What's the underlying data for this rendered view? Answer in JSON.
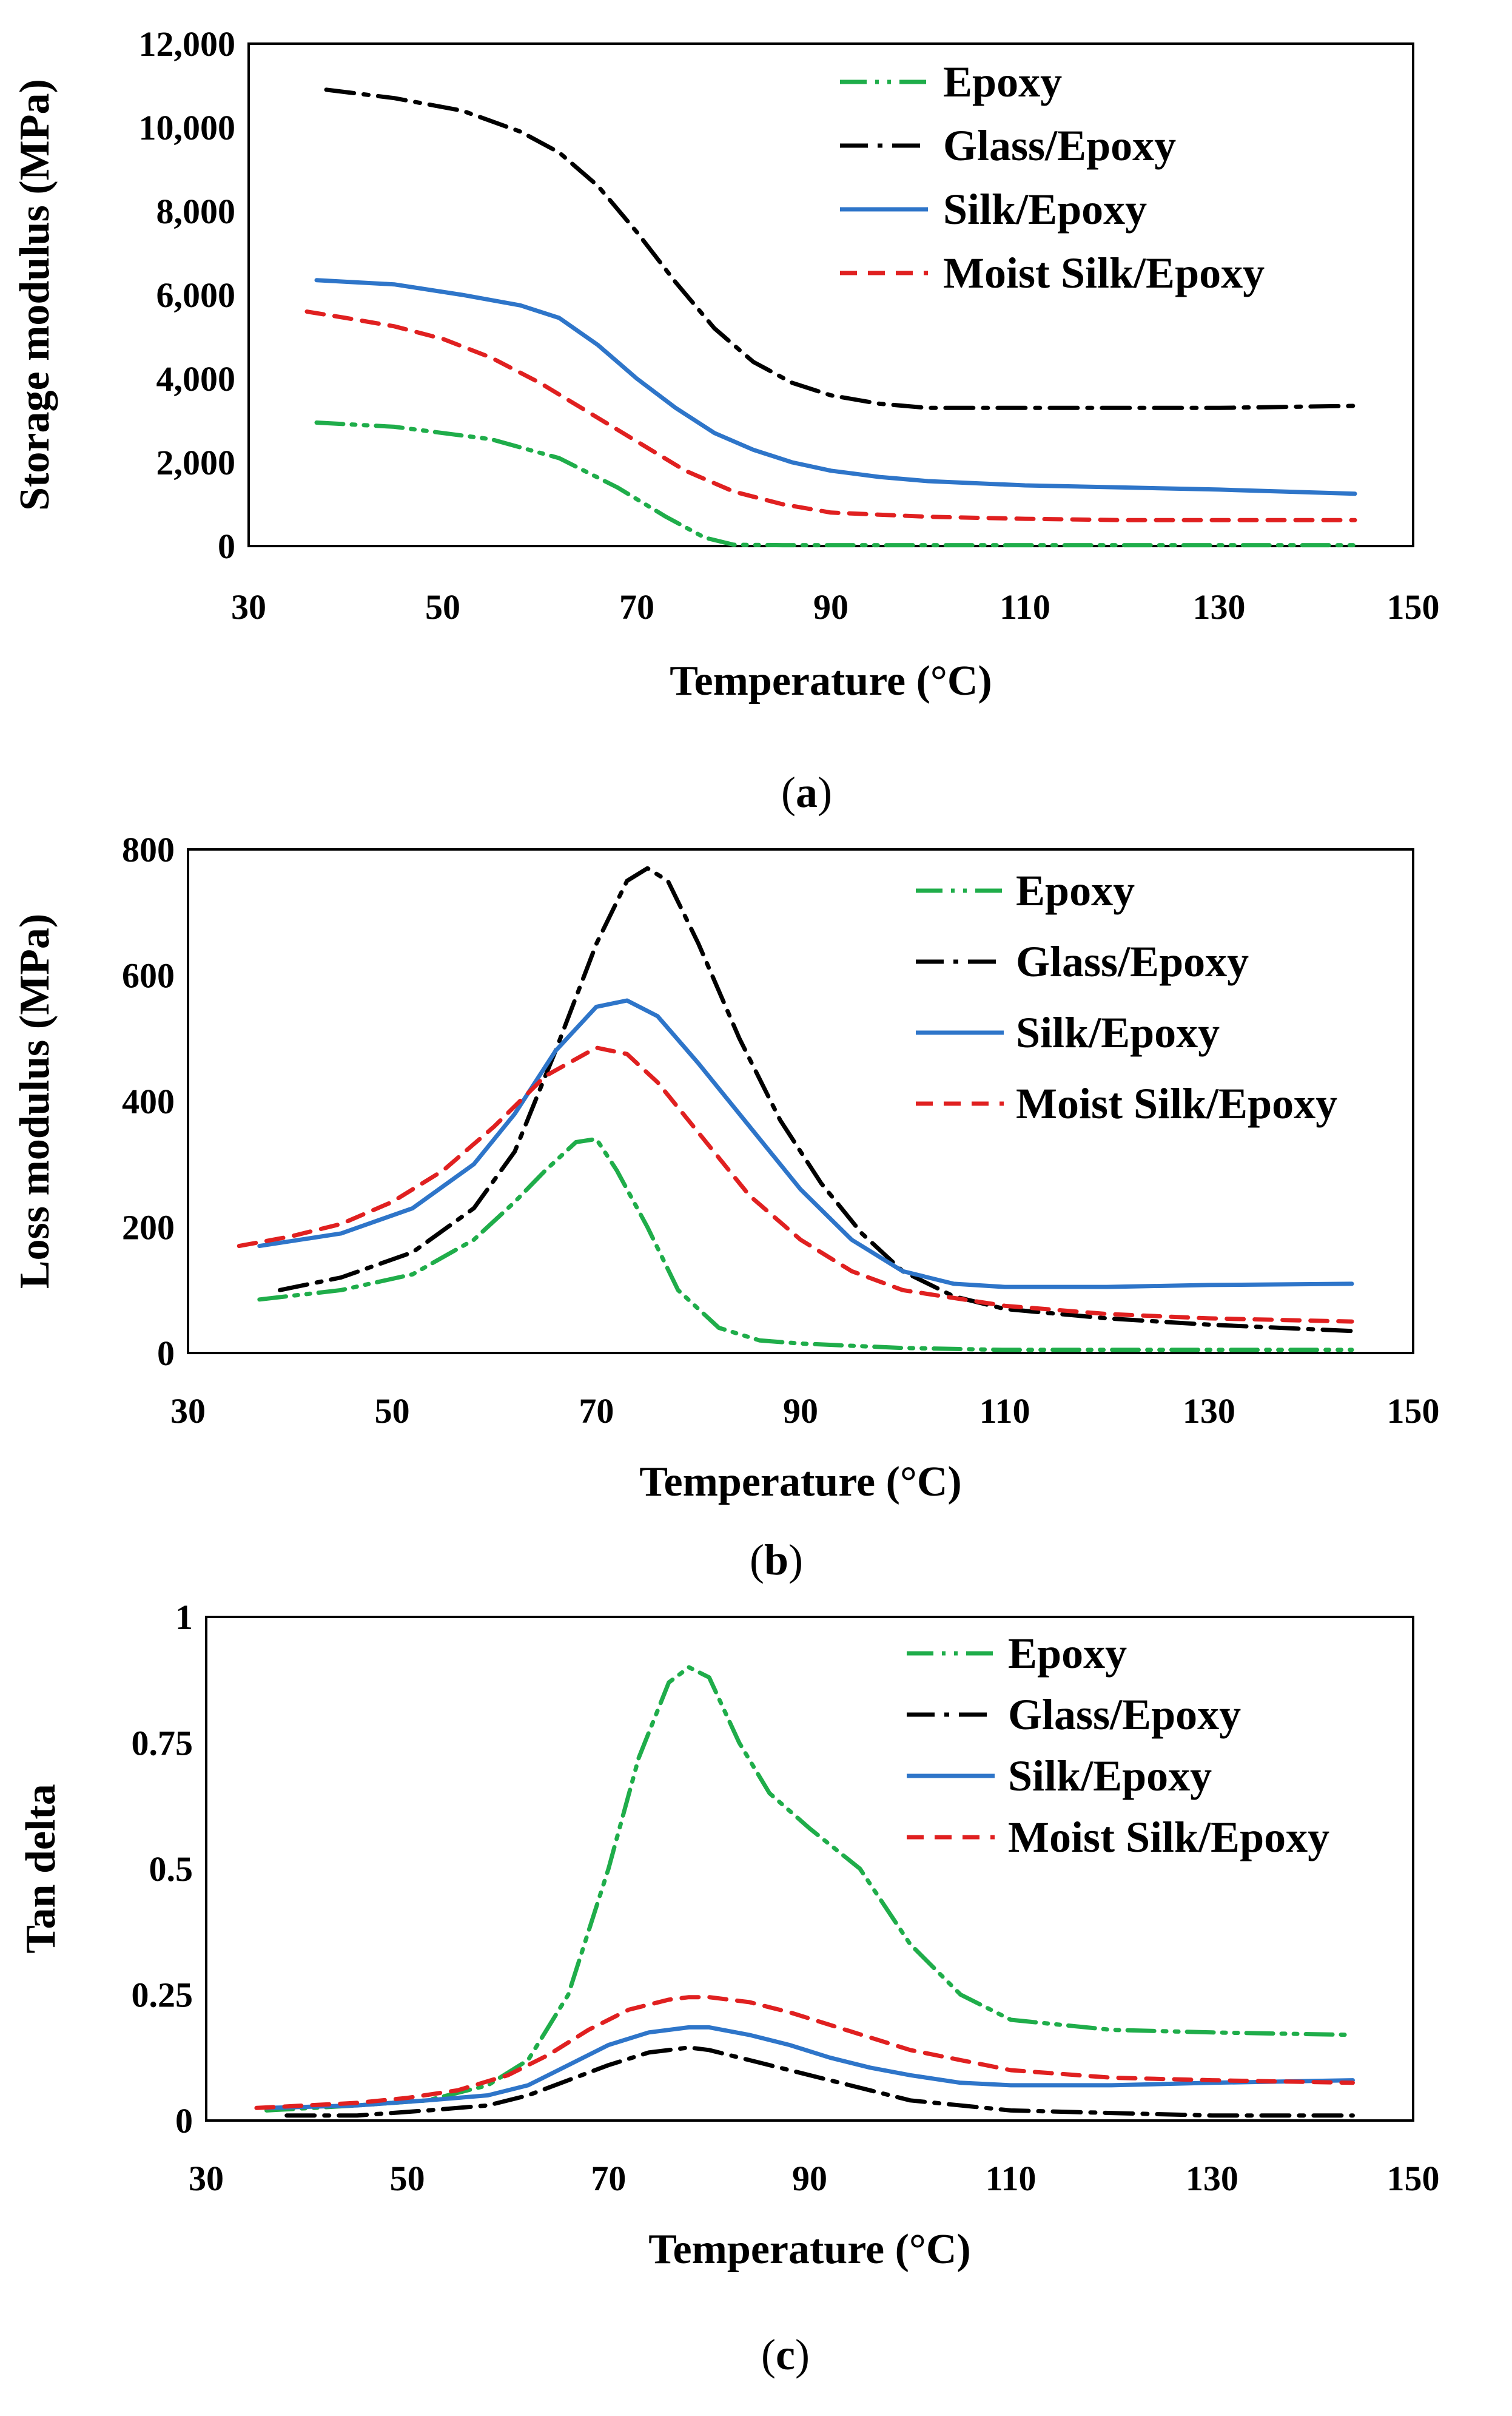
{
  "colors": {
    "Epoxy": "#1fad4a",
    "Glass/Epoxy": "#000000",
    "Silk/Epoxy": "#2e75c9",
    "Moist Silk/Epoxy": "#e02020"
  },
  "chart_data": [
    {
      "id": "a",
      "type": "line",
      "caption": "(a)",
      "caption_letter": "a",
      "xlabel": "Temperature (°C)",
      "ylabel": "Storage modulus (MPa)",
      "xlim": [
        30,
        150
      ],
      "ylim": [
        0,
        12000
      ],
      "xticks": [
        30,
        50,
        70,
        90,
        110,
        130,
        150
      ],
      "xtick_labels": [
        "30",
        "50",
        "70",
        "90",
        "110",
        "130",
        "150"
      ],
      "yticks": [
        0,
        2000,
        4000,
        6000,
        8000,
        10000,
        12000
      ],
      "ytick_labels": [
        "0",
        "2,000",
        "4,000",
        "6,000",
        "8,000",
        "10,000",
        "12,000"
      ],
      "legend": "top-right",
      "series": [
        {
          "name": "Epoxy",
          "x": [
            37,
            45,
            55,
            62,
            68,
            73,
            77,
            80,
            85,
            100,
            120,
            144
          ],
          "y": [
            2950,
            2850,
            2550,
            2100,
            1400,
            700,
            200,
            30,
            20,
            20,
            20,
            20
          ]
        },
        {
          "name": "Glass/Epoxy",
          "x": [
            38,
            45,
            52,
            58,
            62,
            66,
            70,
            74,
            78,
            82,
            86,
            90,
            95,
            100,
            110,
            120,
            130,
            144
          ],
          "y": [
            10900,
            10700,
            10400,
            9900,
            9400,
            8600,
            7500,
            6300,
            5200,
            4400,
            3900,
            3600,
            3400,
            3300,
            3300,
            3300,
            3300,
            3350
          ]
        },
        {
          "name": "Silk/Epoxy",
          "x": [
            37,
            45,
            52,
            58,
            62,
            66,
            70,
            74,
            78,
            82,
            86,
            90,
            95,
            100,
            110,
            120,
            130,
            144
          ],
          "y": [
            6350,
            6250,
            6000,
            5750,
            5450,
            4800,
            4000,
            3300,
            2700,
            2300,
            2000,
            1800,
            1650,
            1550,
            1450,
            1400,
            1350,
            1250
          ]
        },
        {
          "name": "Moist Silk/Epoxy",
          "x": [
            36,
            40,
            45,
            50,
            55,
            60,
            65,
            70,
            75,
            80,
            85,
            90,
            100,
            110,
            120,
            130,
            144
          ],
          "y": [
            5600,
            5450,
            5250,
            4950,
            4500,
            3900,
            3200,
            2500,
            1800,
            1300,
            1000,
            800,
            700,
            650,
            620,
            620,
            620
          ]
        }
      ],
      "legend_entries": [
        "Epoxy",
        "Glass/Epoxy",
        "Silk/Epoxy",
        "Moist Silk/Epoxy"
      ]
    },
    {
      "id": "b",
      "type": "line",
      "caption": "(b)",
      "caption_letter": "b",
      "xlabel": "Temperature (°C)",
      "ylabel": "Loss modulus (MPa)",
      "xlim": [
        30,
        150
      ],
      "ylim": [
        0,
        800
      ],
      "xticks": [
        30,
        50,
        70,
        90,
        110,
        130,
        150
      ],
      "xtick_labels": [
        "30",
        "50",
        "70",
        "90",
        "110",
        "130",
        "150"
      ],
      "yticks": [
        0,
        200,
        400,
        600,
        800
      ],
      "ytick_labels": [
        "0",
        "200",
        "400",
        "600",
        "800"
      ],
      "legend": "top-right",
      "series": [
        {
          "name": "Epoxy",
          "x": [
            37,
            45,
            52,
            58,
            62,
            65,
            68,
            70,
            72,
            75,
            78,
            82,
            86,
            90,
            100,
            110,
            120,
            144
          ],
          "y": [
            85,
            100,
            125,
            180,
            240,
            290,
            335,
            340,
            290,
            200,
            100,
            40,
            20,
            15,
            8,
            5,
            5,
            5
          ]
        },
        {
          "name": "Glass/Epoxy",
          "x": [
            39,
            45,
            52,
            58,
            62,
            66,
            70,
            73,
            75,
            77,
            80,
            84,
            88,
            92,
            96,
            100,
            105,
            110,
            120,
            130,
            144
          ],
          "y": [
            100,
            120,
            160,
            230,
            320,
            480,
            650,
            750,
            770,
            750,
            650,
            500,
            370,
            270,
            190,
            130,
            90,
            70,
            55,
            45,
            35
          ]
        },
        {
          "name": "Silk/Epoxy",
          "x": [
            37,
            45,
            52,
            58,
            62,
            66,
            70,
            73,
            76,
            80,
            85,
            90,
            95,
            100,
            105,
            110,
            120,
            130,
            144
          ],
          "y": [
            170,
            190,
            230,
            300,
            380,
            480,
            550,
            560,
            535,
            460,
            360,
            260,
            180,
            130,
            110,
            105,
            105,
            108,
            110
          ]
        },
        {
          "name": "Moist Silk/Epoxy",
          "x": [
            35,
            40,
            45,
            50,
            55,
            60,
            65,
            70,
            73,
            76,
            80,
            85,
            90,
            95,
            100,
            110,
            120,
            130,
            144
          ],
          "y": [
            170,
            185,
            205,
            240,
            290,
            360,
            440,
            485,
            475,
            430,
            350,
            250,
            180,
            130,
            100,
            75,
            62,
            55,
            50
          ]
        }
      ],
      "legend_entries": [
        "Epoxy",
        "Glass/Epoxy",
        "Silk/Epoxy",
        "Moist Silk/Epoxy"
      ]
    },
    {
      "id": "c",
      "type": "line",
      "caption": "(c)",
      "caption_letter": "c",
      "xlabel": "Temperature (°C)",
      "ylabel": "Tan delta",
      "xlim": [
        30,
        150
      ],
      "ylim": [
        0,
        1
      ],
      "xticks": [
        30,
        50,
        70,
        90,
        110,
        130,
        150
      ],
      "xtick_labels": [
        "30",
        "50",
        "70",
        "90",
        "110",
        "130",
        "150"
      ],
      "yticks": [
        0,
        0.25,
        0.5,
        0.75,
        1
      ],
      "ytick_labels": [
        "0",
        "0.25",
        "0.5",
        "0.75",
        "1"
      ],
      "legend": "top-right",
      "series": [
        {
          "name": "Epoxy",
          "x": [
            36,
            45,
            52,
            58,
            62,
            66,
            70,
            73,
            76,
            78,
            80,
            83,
            86,
            90,
            95,
            100,
            105,
            110,
            120,
            130,
            144
          ],
          "y": [
            0.02,
            0.03,
            0.04,
            0.07,
            0.12,
            0.25,
            0.5,
            0.72,
            0.87,
            0.9,
            0.88,
            0.75,
            0.65,
            0.58,
            0.5,
            0.35,
            0.25,
            0.2,
            0.18,
            0.175,
            0.17
          ]
        },
        {
          "name": "Glass/Epoxy",
          "x": [
            38,
            45,
            52,
            58,
            62,
            66,
            70,
            74,
            78,
            80,
            84,
            88,
            92,
            96,
            100,
            110,
            120,
            130,
            144
          ],
          "y": [
            0.01,
            0.01,
            0.02,
            0.03,
            0.05,
            0.08,
            0.11,
            0.135,
            0.145,
            0.14,
            0.12,
            0.1,
            0.08,
            0.06,
            0.04,
            0.02,
            0.015,
            0.01,
            0.01
          ]
        },
        {
          "name": "Silk/Epoxy",
          "x": [
            36,
            45,
            52,
            58,
            62,
            66,
            70,
            74,
            78,
            80,
            84,
            88,
            92,
            96,
            100,
            105,
            110,
            120,
            130,
            144
          ],
          "y": [
            0.025,
            0.03,
            0.04,
            0.05,
            0.07,
            0.11,
            0.15,
            0.175,
            0.185,
            0.185,
            0.17,
            0.15,
            0.125,
            0.105,
            0.09,
            0.075,
            0.07,
            0.07,
            0.075,
            0.08
          ]
        },
        {
          "name": "Moist Silk/Epoxy",
          "x": [
            35,
            40,
            45,
            50,
            55,
            60,
            64,
            68,
            72,
            76,
            78,
            80,
            84,
            88,
            92,
            96,
            100,
            105,
            110,
            120,
            130,
            144
          ],
          "y": [
            0.025,
            0.03,
            0.035,
            0.045,
            0.06,
            0.09,
            0.13,
            0.18,
            0.22,
            0.24,
            0.245,
            0.245,
            0.235,
            0.215,
            0.19,
            0.165,
            0.14,
            0.12,
            0.1,
            0.085,
            0.08,
            0.075
          ]
        }
      ],
      "legend_entries": [
        "Epoxy",
        "Glass/Epoxy",
        "Silk/Epoxy",
        "Moist Silk/Epoxy"
      ]
    }
  ]
}
